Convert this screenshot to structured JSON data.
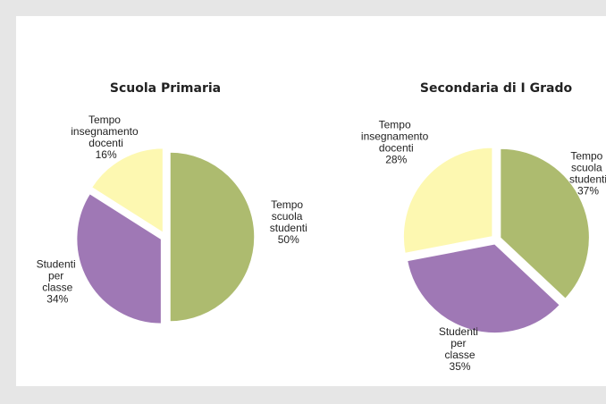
{
  "chart_data": [
    {
      "type": "pie",
      "title": "Scuola Primaria",
      "categories": [
        "Tempo scuola studenti",
        "Studenti per classe",
        "Tempo insegnamento docenti"
      ],
      "values": [
        50,
        34,
        16
      ],
      "value_labels": [
        "50%",
        "34%",
        "16%"
      ],
      "colors": [
        "#adbb6f",
        "#9f78b5",
        "#fdf8b1"
      ]
    },
    {
      "type": "pie",
      "title": "Secondaria di I Grado",
      "categories": [
        "Tempo scuola studenti",
        "Studenti per classe",
        "Tempo insegnamento docenti"
      ],
      "values": [
        37,
        35,
        28
      ],
      "value_labels": [
        "37%",
        "35%",
        "28%"
      ],
      "colors": [
        "#adbb6f",
        "#9f78b5",
        "#fdf8b1"
      ]
    }
  ]
}
